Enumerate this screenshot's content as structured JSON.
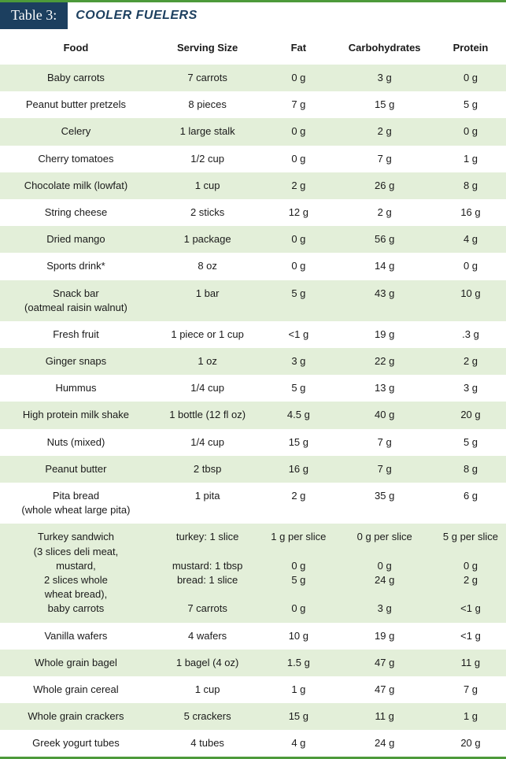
{
  "title": {
    "label": "Table 3:",
    "text": "COOLER FUELERS"
  },
  "colors": {
    "accent_green": "#4d9a3a",
    "header_navy": "#1c3f5f",
    "row_odd": "#e3efd9",
    "row_even": "#ffffff"
  },
  "table": {
    "columns": [
      "Food",
      "Serving Size",
      "Fat",
      "Carbohydrates",
      "Protein"
    ],
    "rows": [
      {
        "food": "Baby carrots",
        "serving": "7 carrots",
        "fat": "0 g",
        "carb": "3 g",
        "prot": "0 g"
      },
      {
        "food": "Peanut butter pretzels",
        "serving": "8 pieces",
        "fat": "7 g",
        "carb": "15 g",
        "prot": "5 g"
      },
      {
        "food": "Celery",
        "serving": "1 large stalk",
        "fat": "0 g",
        "carb": "2 g",
        "prot": "0 g"
      },
      {
        "food": "Cherry tomatoes",
        "serving": "1/2 cup",
        "fat": "0 g",
        "carb": "7 g",
        "prot": "1 g"
      },
      {
        "food": "Chocolate milk (lowfat)",
        "serving": "1 cup",
        "fat": "2 g",
        "carb": "26 g",
        "prot": "8 g"
      },
      {
        "food": "String cheese",
        "serving": "2 sticks",
        "fat": "12 g",
        "carb": "2 g",
        "prot": "16 g"
      },
      {
        "food": "Dried mango",
        "serving": "1 package",
        "fat": "0 g",
        "carb": "56 g",
        "prot": "4 g"
      },
      {
        "food": "Sports drink*",
        "serving": "8 oz",
        "fat": "0 g",
        "carb": "14 g",
        "prot": "0 g"
      },
      {
        "food": "Snack bar",
        "food2": "(oatmeal raisin walnut)",
        "serving": "1 bar",
        "fat": "5 g",
        "carb": "43 g",
        "prot": "10 g"
      },
      {
        "food": "Fresh fruit",
        "serving": "1 piece or 1 cup",
        "fat": "<1 g",
        "carb": "19 g",
        "prot": ".3 g"
      },
      {
        "food": "Ginger snaps",
        "serving": "1 oz",
        "fat": "3 g",
        "carb": "22 g",
        "prot": "2 g"
      },
      {
        "food": "Hummus",
        "serving": "1/4 cup",
        "fat": "5 g",
        "carb": "13 g",
        "prot": "3 g"
      },
      {
        "food": "High protein milk shake",
        "serving": "1 bottle (12 fl oz)",
        "fat": "4.5 g",
        "carb": "40 g",
        "prot": "20 g"
      },
      {
        "food": "Nuts (mixed)",
        "serving": "1/4 cup",
        "fat": "15 g",
        "carb": "7 g",
        "prot": "5 g"
      },
      {
        "food": "Peanut butter",
        "serving": "2 tbsp",
        "fat": "16 g",
        "carb": "7 g",
        "prot": "8 g"
      },
      {
        "food": "Pita bread",
        "food2": "(whole wheat large pita)",
        "serving": "1 pita",
        "fat": "2 g",
        "carb": "35 g",
        "prot": "6 g"
      },
      {
        "multi": true,
        "lines": [
          {
            "food": "Turkey sandwich",
            "serving": "turkey: 1 slice",
            "fat": "1 g per slice",
            "carb": "0 g per slice",
            "prot": "5 g per slice"
          },
          {
            "food": "(3 slices deli meat,",
            "serving": "",
            "fat": "",
            "carb": "",
            "prot": ""
          },
          {
            "food": "mustard,",
            "serving": "mustard: 1 tbsp",
            "fat": "0 g",
            "carb": "0 g",
            "prot": "0 g"
          },
          {
            "food": "2 slices whole",
            "serving": "bread: 1 slice",
            "fat": "5 g",
            "carb": "24 g",
            "prot": "2 g"
          },
          {
            "food": "wheat bread),",
            "serving": "",
            "fat": "",
            "carb": "",
            "prot": ""
          },
          {
            "food": "baby carrots",
            "serving": "7 carrots",
            "fat": "0 g",
            "carb": "3 g",
            "prot": "<1 g"
          }
        ]
      },
      {
        "food": "Vanilla wafers",
        "serving": "4 wafers",
        "fat": "10 g",
        "carb": "19 g",
        "prot": "<1 g"
      },
      {
        "food": "Whole grain bagel",
        "serving": "1 bagel (4 oz)",
        "fat": "1.5 g",
        "carb": "47 g",
        "prot": "11 g"
      },
      {
        "food": "Whole grain cereal",
        "serving": "1 cup",
        "fat": "1 g",
        "carb": "47 g",
        "prot": "7 g"
      },
      {
        "food": "Whole grain crackers",
        "serving": "5 crackers",
        "fat": "15 g",
        "carb": "11 g",
        "prot": "1 g"
      },
      {
        "food": "Greek yogurt tubes",
        "serving": "4 tubes",
        "fat": "4 g",
        "carb": "24 g",
        "prot": "20 g"
      }
    ]
  }
}
